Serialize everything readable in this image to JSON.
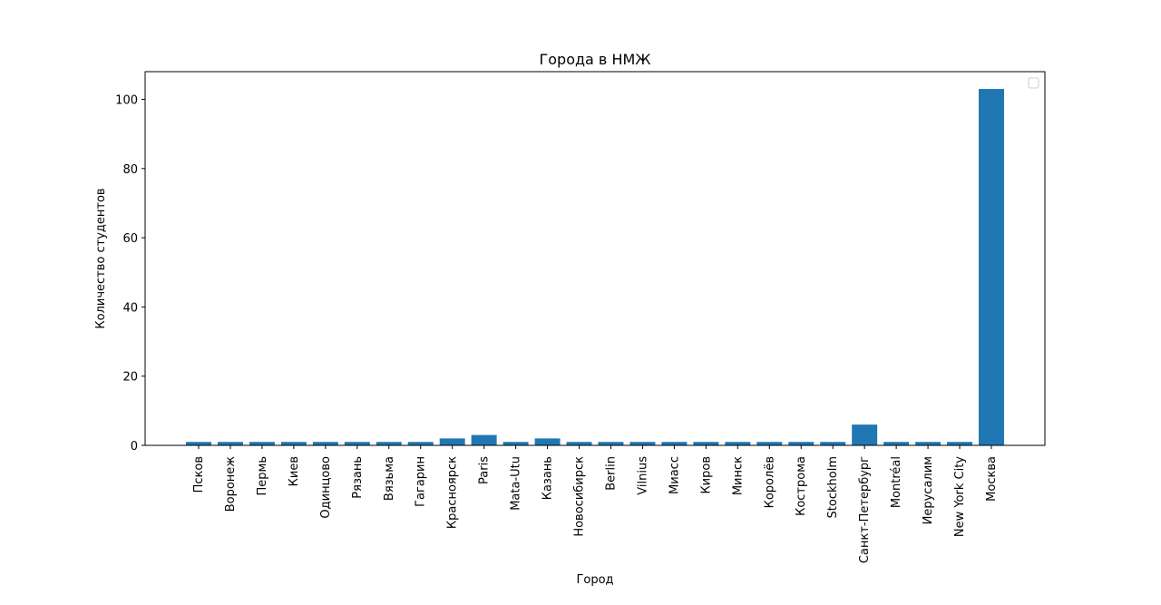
{
  "chart_data": {
    "type": "bar",
    "title": "Города в НМЖ",
    "xlabel": "Город",
    "ylabel": "Количество студентов",
    "categories": [
      "Псков",
      "Воронеж",
      "Пермь",
      "Киев",
      "Одинцово",
      "Рязань",
      "Вязьма",
      "Гагарин",
      "Красноярск",
      "Paris",
      "Mata-Utu",
      "Казань",
      "Новосибирск",
      "Berlin",
      "Vilnius",
      "Миасс",
      "Киров",
      "Минск",
      "Королёв",
      "Кострома",
      "Stockholm",
      "Санкт-Петербург",
      "Montréal",
      "Иерусалим",
      "New York City",
      "Москва"
    ],
    "values": [
      1,
      1,
      1,
      1,
      1,
      1,
      1,
      1,
      2,
      3,
      1,
      2,
      1,
      1,
      1,
      1,
      1,
      1,
      1,
      1,
      1,
      6,
      1,
      1,
      1,
      103
    ],
    "ylim": [
      0,
      108
    ],
    "yticks": [
      0,
      20,
      40,
      60,
      80,
      100
    ],
    "grid": false,
    "legend": "top-right",
    "bar_color": "#1f77b4"
  }
}
